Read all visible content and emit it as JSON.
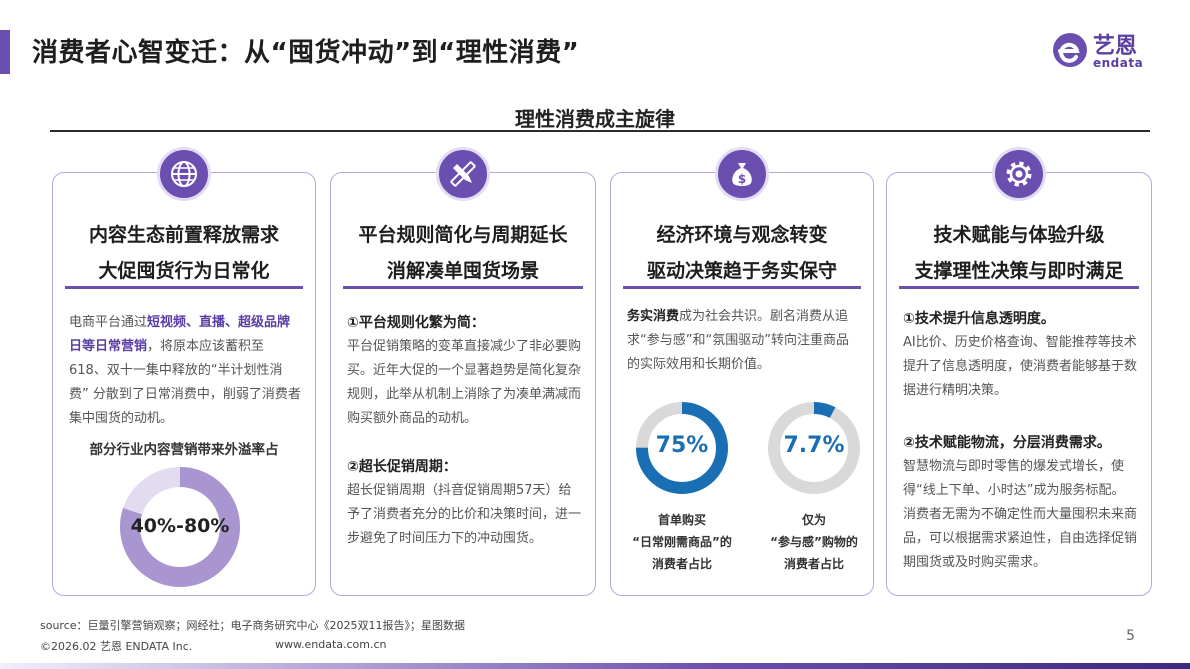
{
  "header": {
    "title": "消费者心智变迁：从“囤货冲动”到“理性消费”",
    "logo_cn": "艺恩",
    "logo_en": "endata"
  },
  "subtitle": "理性消费成主旋律",
  "cards": [
    {
      "icon": "globe-icon",
      "head1": "内容生态前置释放需求",
      "head2": "大促囤货行为日常化",
      "text_pre": "电商平台通过",
      "text_hl": "短视频、直播、超级品牌日等日常营销",
      "text_post": "，将原本应该蓄积至618、双十一集中释放的“半计划性消费” 分散到了日常消费中，削弱了消费者集中囤货的动机。",
      "chart_title": "部分行业内容营销带来外溢率占",
      "donut_value": "40%-80%"
    },
    {
      "icon": "pencil-ruler-icon",
      "head1": "平台规则简化与周期延长",
      "head2": "消解凑单囤货场景",
      "sub1": "①平台规则化繁为简：",
      "text1": "平台促销策略的变革直接减少了非必要购买。近年大促的一个显著趋势是简化复杂规则，此举从机制上消除了为凑单满减而购买额外商品的动机。",
      "sub2": "②超长促销周期：",
      "text2": "超长促销周期（抖音促销周期57天）给予了消费者充分的比价和决策时间，进一步避免了时间压力下的冲动囤货。"
    },
    {
      "icon": "money-bag-icon",
      "head1": "经济环境与观念转变",
      "head2": "驱动决策趋于务实保守",
      "text_hl": "务实消费",
      "text_post": "成为社会共识。剧名消费从追求“参与感”和“氛围驱动”转向注重商品的实际效用和长期价值。",
      "donuts": [
        {
          "value": "75%",
          "label1": "首单购买",
          "label2": "“日常刚需商品”的",
          "label3": "消费者占比"
        },
        {
          "value": "7.7%",
          "label1": "仅为",
          "label2": "“参与感”购物的",
          "label3": "消费者占比"
        }
      ]
    },
    {
      "icon": "gear-icon",
      "head1": "技术赋能与体验升级",
      "head2": "支撑理性决策与即时满足",
      "sub1": "①技术提升信息透明度。",
      "text1": "AI比价、历史价格查询、智能推荐等技术提升了信息透明度，使消费者能够基于数据进行精明决策。",
      "sub2": "②技术赋能物流，分层消费需求。",
      "text2": "智慧物流与即时零售的爆发式增长，使得“线上下单、小时达”成为服务标配。消费者无需为不确定性而大量囤积未来商品，可以根据需求紧迫性，自由选择促销期囤货或及时购买需求。"
    }
  ],
  "chart_data": [
    {
      "type": "pie",
      "title": "部分行业内容营销带来外溢率占",
      "label": "40%-80%",
      "values": [
        40,
        80
      ]
    },
    {
      "type": "pie",
      "title": "首单购买“日常刚需商品”的消费者占比",
      "values": [
        75
      ],
      "label": "75%"
    },
    {
      "type": "pie",
      "title": "仅为“参与感”购物的消费者占比",
      "values": [
        7.7
      ],
      "label": "7.7%"
    }
  ],
  "footer": {
    "source": "source：巨量引擎营销观察；网经社；电子商务研究中心《2025双11报告》；星图数据",
    "copyright": "©2026.02 艺恩 ENDATA Inc.",
    "url": "www.endata.com.cn",
    "page": "5"
  },
  "colors": {
    "accent": "#6a4fb0",
    "blue": "#1a6fb4",
    "ring_bg": "#d9d9d9",
    "ring_light": "#e0d9ef"
  }
}
